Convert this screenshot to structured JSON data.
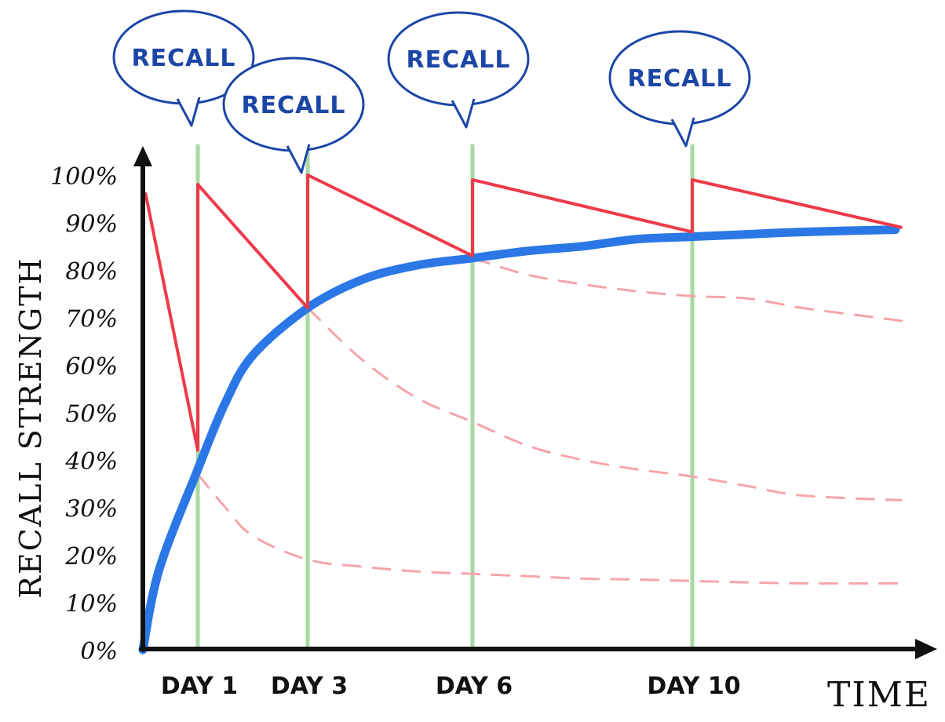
{
  "chart_data": {
    "type": "line",
    "xlabel": "TIME",
    "ylabel": "RECALL STRENGTH",
    "ylim": [
      0,
      100
    ],
    "xlim": [
      0,
      14
    ],
    "y_ticks": [
      "0%",
      "10%",
      "20%",
      "30%",
      "40%",
      "50%",
      "60%",
      "70%",
      "80%",
      "90%",
      "100%"
    ],
    "review_days": [
      {
        "day": 1,
        "label": "DAY 1",
        "callout": "RECALL"
      },
      {
        "day": 3,
        "label": "DAY 3",
        "callout": "RECALL"
      },
      {
        "day": 6,
        "label": "DAY 6",
        "callout": "RECALL"
      },
      {
        "day": 10,
        "label": "DAY 10",
        "callout": "RECALL"
      }
    ],
    "series": [
      {
        "role": "retention with reviews",
        "points": [
          [
            0.05,
            96
          ],
          [
            1,
            42
          ],
          [
            1,
            98
          ],
          [
            3,
            72
          ],
          [
            3,
            100
          ],
          [
            6,
            83
          ],
          [
            6,
            99
          ],
          [
            10,
            88
          ],
          [
            10,
            99
          ],
          [
            13.8,
            89
          ]
        ]
      },
      {
        "role": "long-term strength",
        "points": [
          [
            0,
            0
          ],
          [
            0.3,
            17
          ],
          [
            1,
            38
          ],
          [
            1.5,
            52
          ],
          [
            2,
            62
          ],
          [
            3,
            72
          ],
          [
            4,
            78
          ],
          [
            5,
            81
          ],
          [
            6,
            82.5
          ],
          [
            7,
            84
          ],
          [
            8,
            85
          ],
          [
            9,
            86.5
          ],
          [
            10,
            87
          ],
          [
            11,
            87.5
          ],
          [
            12,
            88
          ],
          [
            13.7,
            88.5
          ]
        ]
      },
      {
        "role": "forgetting without review after day 1",
        "points": [
          [
            1,
            37
          ],
          [
            1.5,
            30
          ],
          [
            2,
            24
          ],
          [
            3,
            19
          ],
          [
            4,
            17.5
          ],
          [
            5,
            16.5
          ],
          [
            6,
            16
          ],
          [
            7,
            15.5
          ],
          [
            8,
            15
          ],
          [
            9,
            14.8
          ],
          [
            10,
            14.5
          ],
          [
            11,
            14.2
          ],
          [
            12,
            14
          ],
          [
            13.8,
            14
          ]
        ]
      },
      {
        "role": "forgetting without review after day 3",
        "points": [
          [
            3,
            72
          ],
          [
            4,
            61
          ],
          [
            5,
            53
          ],
          [
            6,
            48
          ],
          [
            7,
            43
          ],
          [
            8,
            40
          ],
          [
            9,
            38
          ],
          [
            10,
            36.5
          ],
          [
            11,
            34.5
          ],
          [
            12,
            32.5
          ],
          [
            13.8,
            31.5
          ]
        ]
      },
      {
        "role": "forgetting without review after day 6",
        "points": [
          [
            6,
            82.5
          ],
          [
            7,
            79
          ],
          [
            8,
            77
          ],
          [
            9,
            75.5
          ],
          [
            10,
            74.5
          ],
          [
            11,
            74
          ],
          [
            12,
            72
          ],
          [
            13,
            70.5
          ],
          [
            14,
            69
          ]
        ]
      }
    ],
    "colors": {
      "retention": "#ee3a4a",
      "strength": "#2b77e6",
      "forgetting": "#f4a5ab",
      "review_line": "#a8d9a4",
      "axis": "#111111",
      "callout": "#1c46a6"
    },
    "grid": false
  }
}
